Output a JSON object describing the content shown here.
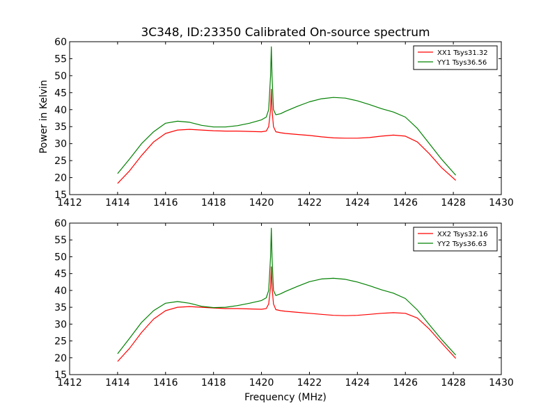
{
  "figure": {
    "title": "3C348, ID:23350 Calibrated On-source spectrum",
    "xlabel": "Frequency (MHz)",
    "ylabel": "Power in Kelvin"
  },
  "chart_data": [
    {
      "type": "line",
      "title": "3C348, ID:23350 Calibrated On-source spectrum",
      "xlabel": "",
      "ylabel": "Power in Kelvin",
      "xlim": [
        1412,
        1430
      ],
      "ylim": [
        15,
        60
      ],
      "xticks": [
        1412,
        1414,
        1416,
        1418,
        1420,
        1422,
        1424,
        1426,
        1428,
        1430
      ],
      "yticks": [
        15,
        20,
        25,
        30,
        35,
        40,
        45,
        50,
        55,
        60
      ],
      "grid": false,
      "legend": "top-right",
      "series": [
        {
          "name": "XX1 Tsys31.32",
          "color": "#ff0000",
          "x": [
            1414.0,
            1414.5,
            1415.0,
            1415.5,
            1416.0,
            1416.5,
            1417.0,
            1417.5,
            1418.0,
            1418.5,
            1419.0,
            1419.5,
            1420.0,
            1420.2,
            1420.3,
            1420.38,
            1420.41,
            1420.44,
            1420.5,
            1420.6,
            1420.8,
            1421.0,
            1421.5,
            1422.0,
            1422.5,
            1423.0,
            1423.5,
            1424.0,
            1424.5,
            1425.0,
            1425.5,
            1426.0,
            1426.5,
            1427.0,
            1427.5,
            1428.1
          ],
          "y": [
            18.3,
            22.0,
            26.5,
            30.5,
            33.0,
            34.0,
            34.2,
            34.0,
            33.8,
            33.7,
            33.7,
            33.6,
            33.5,
            33.7,
            35.0,
            40.0,
            46.0,
            40.0,
            35.0,
            33.5,
            33.2,
            33.0,
            32.7,
            32.4,
            32.0,
            31.7,
            31.6,
            31.6,
            31.8,
            32.2,
            32.5,
            32.2,
            30.5,
            27.0,
            23.0,
            19.2
          ]
        },
        {
          "name": "YY1 Tsys36.56",
          "color": "#008000",
          "x": [
            1414.0,
            1414.5,
            1415.0,
            1415.5,
            1416.0,
            1416.5,
            1417.0,
            1417.5,
            1418.0,
            1418.5,
            1419.0,
            1419.5,
            1420.0,
            1420.2,
            1420.3,
            1420.38,
            1420.41,
            1420.44,
            1420.5,
            1420.6,
            1420.8,
            1421.0,
            1421.5,
            1422.0,
            1422.5,
            1423.0,
            1423.5,
            1424.0,
            1424.5,
            1425.0,
            1425.5,
            1426.0,
            1426.5,
            1427.0,
            1427.5,
            1428.1
          ],
          "y": [
            21.2,
            25.5,
            30.0,
            33.5,
            36.0,
            36.6,
            36.3,
            35.4,
            34.9,
            34.9,
            35.3,
            36.0,
            37.0,
            37.8,
            40.0,
            50.0,
            58.5,
            50.0,
            40.0,
            38.5,
            38.8,
            39.5,
            41.0,
            42.3,
            43.2,
            43.6,
            43.4,
            42.6,
            41.5,
            40.3,
            39.3,
            37.8,
            34.5,
            30.0,
            25.5,
            20.7
          ]
        }
      ]
    },
    {
      "type": "line",
      "title": "",
      "xlabel": "Frequency (MHz)",
      "ylabel": "",
      "xlim": [
        1412,
        1430
      ],
      "ylim": [
        15,
        60
      ],
      "xticks": [
        1412,
        1414,
        1416,
        1418,
        1420,
        1422,
        1424,
        1426,
        1428,
        1430
      ],
      "yticks": [
        15,
        20,
        25,
        30,
        35,
        40,
        45,
        50,
        55,
        60
      ],
      "grid": false,
      "legend": "top-right",
      "series": [
        {
          "name": "XX2 Tsys32.16",
          "color": "#ff0000",
          "x": [
            1414.0,
            1414.5,
            1415.0,
            1415.5,
            1416.0,
            1416.5,
            1417.0,
            1417.5,
            1418.0,
            1418.5,
            1419.0,
            1419.5,
            1420.0,
            1420.2,
            1420.3,
            1420.38,
            1420.41,
            1420.44,
            1420.5,
            1420.6,
            1420.8,
            1421.0,
            1421.5,
            1422.0,
            1422.5,
            1423.0,
            1423.5,
            1424.0,
            1424.5,
            1425.0,
            1425.5,
            1426.0,
            1426.5,
            1427.0,
            1427.5,
            1428.1
          ],
          "y": [
            18.9,
            22.8,
            27.5,
            31.5,
            34.0,
            35.0,
            35.2,
            35.0,
            34.8,
            34.6,
            34.6,
            34.5,
            34.4,
            34.6,
            36.0,
            41.0,
            47.0,
            41.0,
            36.0,
            34.3,
            34.0,
            33.8,
            33.5,
            33.2,
            32.9,
            32.6,
            32.5,
            32.6,
            32.9,
            33.2,
            33.4,
            33.2,
            31.8,
            28.5,
            24.5,
            19.8
          ]
        },
        {
          "name": "YY2 Tsys36.63",
          "color": "#008000",
          "x": [
            1414.0,
            1414.5,
            1415.0,
            1415.5,
            1416.0,
            1416.5,
            1417.0,
            1417.5,
            1418.0,
            1418.5,
            1419.0,
            1419.5,
            1420.0,
            1420.2,
            1420.3,
            1420.38,
            1420.41,
            1420.44,
            1420.5,
            1420.6,
            1420.8,
            1421.0,
            1421.5,
            1422.0,
            1422.5,
            1423.0,
            1423.5,
            1424.0,
            1424.5,
            1425.0,
            1425.5,
            1426.0,
            1426.5,
            1427.0,
            1427.5,
            1428.1
          ],
          "y": [
            21.2,
            25.8,
            30.5,
            34.0,
            36.2,
            36.7,
            36.2,
            35.3,
            34.9,
            35.0,
            35.5,
            36.2,
            37.0,
            37.8,
            40.0,
            50.0,
            58.5,
            50.0,
            40.0,
            38.5,
            39.0,
            39.7,
            41.2,
            42.6,
            43.4,
            43.6,
            43.3,
            42.5,
            41.4,
            40.2,
            39.2,
            37.6,
            34.2,
            29.8,
            25.5,
            20.8
          ]
        }
      ]
    }
  ]
}
